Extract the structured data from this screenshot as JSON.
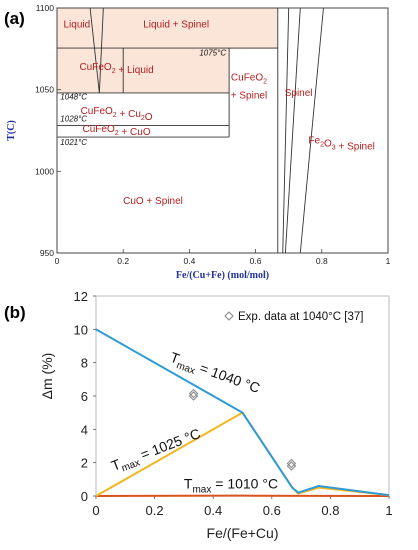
{
  "chart_data": [
    {
      "panel": "(a)",
      "type": "phase-diagram",
      "xlabel": "Fe/(Cu+Fe) (mol/mol)",
      "ylabel": "T(C)",
      "xlim": [
        0,
        1
      ],
      "ylim": [
        950,
        1100
      ],
      "x_ticks": [
        "0",
        "0.2",
        "0.4",
        "0.6",
        "0.8",
        "1"
      ],
      "y_ticks": [
        "950",
        "1000",
        "1050",
        "1100"
      ],
      "boundary_temperatures": [
        "1075°C",
        "1048°C",
        "1028°C",
        "1021°C"
      ],
      "regions": [
        {
          "label": "Liquid",
          "shaded": true
        },
        {
          "label": "Liquid + Spinel",
          "shaded": true
        },
        {
          "label": "CuFeO2 + Liquid",
          "shaded": true
        },
        {
          "label": "CuFeO2 + Cu2O",
          "shaded": false
        },
        {
          "label": "CuFeO2 + CuO",
          "shaded": false
        },
        {
          "label": "CuFeO2 + Spinel",
          "shaded": false
        },
        {
          "label": "Spinel",
          "shaded": false
        },
        {
          "label": "Fe2O3 + Spinel",
          "shaded": false
        },
        {
          "label": "CuO + Spinel",
          "shaded": false
        }
      ],
      "colors": {
        "shade": "#fbe4d8",
        "region_text": "#b21f1f",
        "ylabel": "#1f2f9f",
        "line": "#333333"
      }
    },
    {
      "panel": "(b)",
      "type": "line",
      "xlabel": "Fe/(Fe+Cu)",
      "ylabel": "Δm (%)",
      "xlim": [
        0,
        1
      ],
      "ylim": [
        0,
        12
      ],
      "x_ticks": [
        "0",
        "0.2",
        "0.4",
        "0.6",
        "0.8",
        "1"
      ],
      "y_ticks": [
        "0",
        "2",
        "4",
        "6",
        "8",
        "10",
        "12"
      ],
      "series": [
        {
          "name": "Tmax = 1040 °C",
          "color": "#2e9bd6",
          "x": [
            0,
            0.5,
            0.67,
            0.69,
            0.76,
            1.0
          ],
          "y": [
            10.0,
            5.0,
            0.5,
            0.2,
            0.6,
            0.05
          ]
        },
        {
          "name": "Tmax = 1025 °C",
          "color": "#f2b61f",
          "x": [
            0,
            0.5,
            0.67,
            0.69,
            0.76,
            1.0
          ],
          "y": [
            0.0,
            5.0,
            0.5,
            0.15,
            0.5,
            0.05
          ]
        },
        {
          "name": "Tmax = 1010 °C",
          "color": "#d9531e",
          "x": [
            0,
            0.5,
            1.0
          ],
          "y": [
            0.0,
            0.02,
            0.0
          ]
        }
      ],
      "scatter": {
        "name": "Exp. data at 1040°C [37]",
        "x": [
          0.333,
          0.333,
          0.667,
          0.667
        ],
        "y": [
          6.0,
          6.15,
          1.8,
          1.95
        ]
      },
      "curve_labels": [
        {
          "main": "T",
          "sub": "max",
          "rest": " = 1040 °C"
        },
        {
          "main": "T",
          "sub": "max",
          "rest": " = 1025 °C"
        },
        {
          "main": "T",
          "sub": "max",
          "rest": " = 1010 °C"
        }
      ],
      "legend": {
        "placement": "top-right",
        "label": "Exp. data at 1040°C [37]"
      }
    }
  ]
}
